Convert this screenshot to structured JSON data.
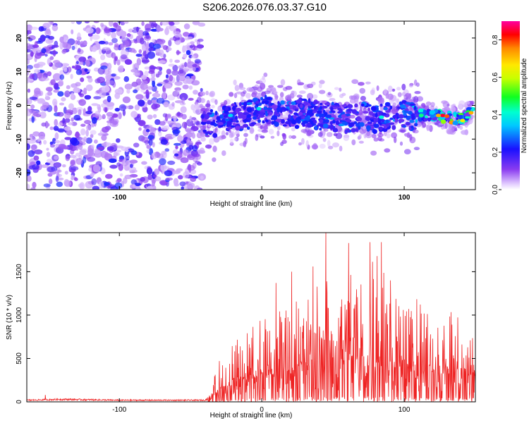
{
  "figure": {
    "title": "S206.2026.076.03.37.G10"
  },
  "chart_data": [
    {
      "type": "heatmap",
      "title": "S206.2026.076.03.37.G10",
      "xlabel": "Height of straight line (km)",
      "ylabel": "Frequency (Hz)",
      "xlim": [
        -165,
        150
      ],
      "ylim": [
        -25,
        25
      ],
      "xticks": [
        -100,
        0,
        100
      ],
      "xtick_labels": [
        "-100",
        "0",
        "100"
      ],
      "yticks": [
        -20,
        -10,
        0,
        10,
        20
      ],
      "ytick_labels": [
        "-20",
        "-10",
        "0",
        "10",
        "20"
      ],
      "colorbar": {
        "label": "Normalized spectral amplitude",
        "range": [
          0,
          0.9
        ],
        "ticks": [
          0.0,
          0.2,
          0.4,
          0.6,
          0.8
        ],
        "tick_labels": [
          "0.0",
          "0.2",
          "0.4",
          "0.6",
          "0.8"
        ],
        "colormap": "rainbow (purple-blue-cyan-green-yellow-orange-red-magenta)"
      },
      "noise_region_x": [
        -165,
        -42
      ],
      "ridge": {
        "x": [
          -42,
          -30,
          -20,
          -10,
          0,
          10,
          20,
          30,
          40,
          50,
          60,
          70,
          80,
          90,
          100,
          110,
          120,
          130,
          140,
          148
        ],
        "center_freq": [
          -6,
          -5,
          -3.5,
          -3,
          -1,
          -2,
          -3,
          -2,
          -3,
          -3.5,
          -4,
          -3,
          -4,
          -3.5,
          -3,
          -3,
          -3,
          -3.5,
          -4,
          -2
        ],
        "peak_amplitude": [
          0.28,
          0.33,
          0.33,
          0.3,
          0.34,
          0.3,
          0.3,
          0.3,
          0.32,
          0.32,
          0.33,
          0.31,
          0.34,
          0.34,
          0.36,
          0.4,
          0.45,
          0.85,
          0.6,
          0.7
        ]
      },
      "grid": false
    },
    {
      "type": "line",
      "xlabel": "Height of straight line (km)",
      "ylabel": "SNR (10 * v/v)",
      "xlim": [
        -165,
        150
      ],
      "ylim": [
        0,
        1950
      ],
      "xticks": [
        -100,
        0,
        100
      ],
      "xtick_labels": [
        "-100",
        "0",
        "100"
      ],
      "yticks": [
        0,
        500,
        1000,
        1500
      ],
      "ytick_labels": [
        "0",
        "500",
        "1000",
        "1500"
      ],
      "series": [
        {
          "color": "#ee2222",
          "envelope": {
            "x": [
              -165,
              -140,
              -100,
              -60,
              -40,
              -35,
              -30,
              -20,
              -10,
              0,
              10,
              20,
              30,
              40,
              50,
              60,
              70,
              80,
              90,
              100,
              110,
              120,
              130,
              140,
              150
            ],
            "baseline": [
              20,
              30,
              20,
              20,
              20,
              60,
              120,
              200,
              250,
              300,
              330,
              360,
              380,
              420,
              430,
              430,
              420,
              420,
              400,
              380,
              360,
              340,
              320,
              300,
              300
            ],
            "typical_max": [
              60,
              70,
              50,
              40,
              40,
              300,
              500,
              700,
              820,
              950,
              1100,
              1300,
              1250,
              1450,
              1400,
              1450,
              1550,
              1650,
              1500,
              1100,
              1200,
              1100,
              1050,
              1000,
              800
            ]
          },
          "peaks": [
            {
              "x": -152,
              "y": 80
            },
            {
              "x": 45,
              "y": 1950
            },
            {
              "x": 61,
              "y": 1830
            },
            {
              "x": 76,
              "y": 1840
            },
            {
              "x": 84,
              "y": 1840
            },
            {
              "x": 81,
              "y": 1680
            },
            {
              "x": 21,
              "y": 1500
            },
            {
              "x": 36,
              "y": 1560
            },
            {
              "x": 10,
              "y": 1370
            }
          ]
        }
      ],
      "grid": false
    }
  ]
}
